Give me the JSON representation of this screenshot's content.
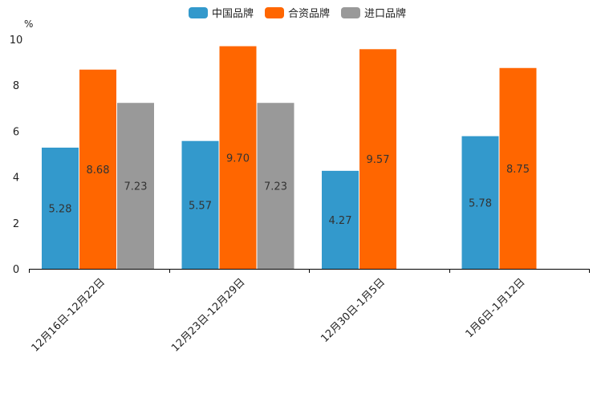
{
  "chart_data": {
    "type": "bar",
    "ylabel": "%",
    "ylim": [
      0,
      10
    ],
    "yticks": [
      "0",
      "2",
      "4",
      "6",
      "8",
      "10"
    ],
    "categories": [
      "12月16日-12月22日",
      "12月23日-12月29日",
      "12月30日-1月5日",
      "1月6日-1月12日"
    ],
    "series": [
      {
        "name": "中国品牌",
        "color": "#3399cc",
        "values": [
          5.28,
          5.57,
          4.27,
          5.78
        ],
        "labels": [
          "5.28",
          "5.57",
          "4.27",
          "5.78"
        ]
      },
      {
        "name": "合资品牌",
        "color": "#ff6600",
        "values": [
          8.68,
          9.7,
          9.57,
          8.75
        ],
        "labels": [
          "8.68",
          "9.70",
          "9.57",
          "8.75"
        ]
      },
      {
        "name": "进口品牌",
        "color": "#999999",
        "values": [
          7.23,
          7.23,
          null,
          null
        ],
        "labels": [
          "7.23",
          "7.23",
          "",
          ""
        ]
      }
    ],
    "legend_position": "top-center",
    "grid": false
  }
}
